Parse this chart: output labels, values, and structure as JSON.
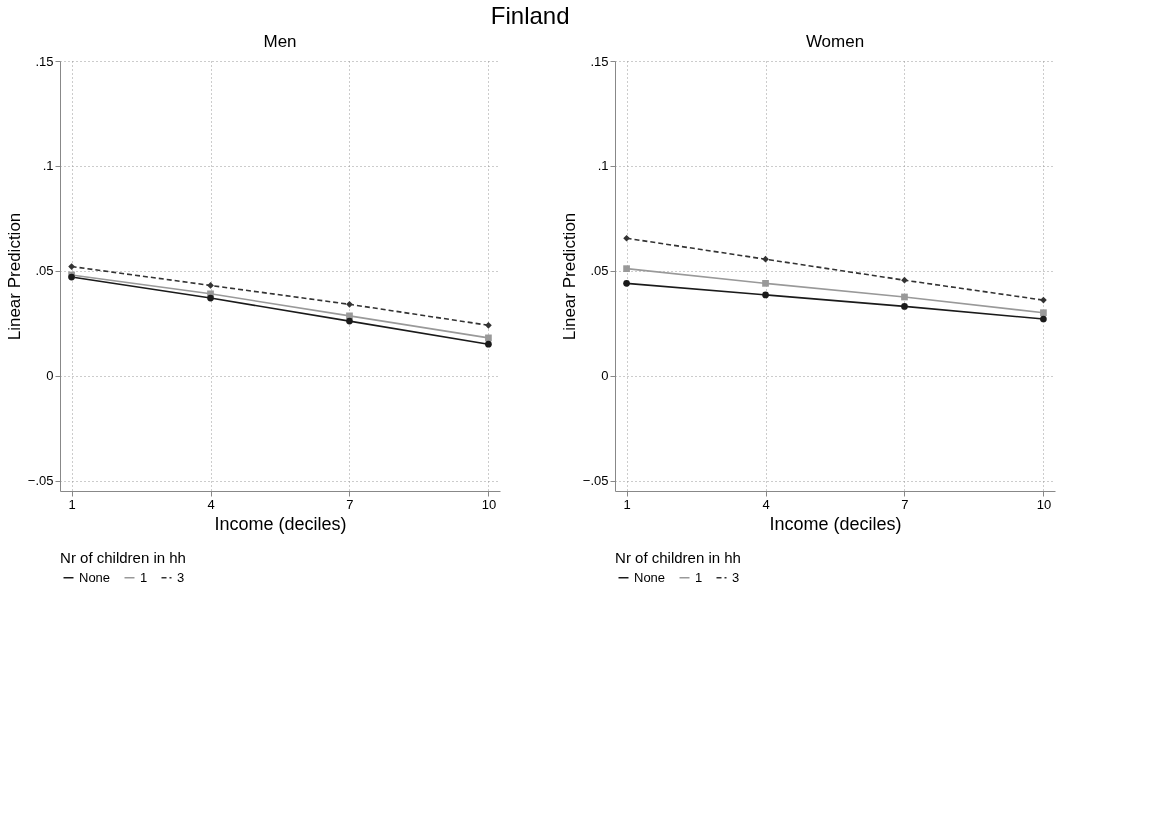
{
  "chart_data": [
    {
      "type": "line",
      "title": "Men",
      "annotations": [
        "Finland"
      ],
      "xlabel": "Income (deciles)",
      "ylabel": "Linear Prediction",
      "legend_title": "Nr of children in hh",
      "legend": "bottom",
      "grid": true,
      "x": [
        1,
        4,
        7,
        10
      ],
      "xlim": [
        0.75,
        10.25
      ],
      "xticks": [
        1,
        4,
        7,
        10
      ],
      "ylim": [
        -0.055,
        0.15
      ],
      "yticks": [
        {
          "value": -0.05,
          "label": "−.05"
        },
        0,
        {
          "value": 0.05,
          "label": ".05"
        },
        {
          "value": 0.1,
          "label": ".1"
        },
        {
          "value": 0.15,
          "label": ".15"
        }
      ],
      "series": [
        {
          "name": "None",
          "color": "#1a1a1a",
          "marker": "circle",
          "line_style": "solid",
          "values": [
            0.047,
            0.037,
            0.026,
            0.015
          ]
        },
        {
          "name": "1",
          "color": "#999999",
          "marker": "square",
          "line_style": "solid",
          "values": [
            0.048,
            0.039,
            0.0285,
            0.018
          ]
        },
        {
          "name": "3",
          "color": "#333333",
          "marker": "diamond",
          "line_style": "dashed",
          "values": [
            0.052,
            0.043,
            0.034,
            0.024
          ]
        }
      ]
    },
    {
      "type": "line",
      "title": "Women",
      "xlabel": "Income (deciles)",
      "ylabel": "Linear Prediction",
      "legend_title": "Nr of children in hh",
      "legend": "bottom",
      "grid": true,
      "x": [
        1,
        4,
        7,
        10
      ],
      "xlim": [
        0.75,
        10.25
      ],
      "xticks": [
        1,
        4,
        7,
        10
      ],
      "ylim": [
        -0.055,
        0.15
      ],
      "yticks": [
        {
          "value": -0.05,
          "label": "−.05"
        },
        0,
        {
          "value": 0.05,
          "label": ".05"
        },
        {
          "value": 0.1,
          "label": ".1"
        },
        {
          "value": 0.15,
          "label": ".15"
        }
      ],
      "series": [
        {
          "name": "None",
          "color": "#1a1a1a",
          "marker": "circle",
          "line_style": "solid",
          "values": [
            0.044,
            0.0385,
            0.033,
            0.027
          ]
        },
        {
          "name": "1",
          "color": "#999999",
          "marker": "square",
          "line_style": "solid",
          "values": [
            0.051,
            0.044,
            0.0375,
            0.03
          ]
        },
        {
          "name": "3",
          "color": "#333333",
          "marker": "diamond",
          "line_style": "dashed",
          "values": [
            0.0655,
            0.0555,
            0.0455,
            0.036
          ]
        }
      ]
    }
  ]
}
